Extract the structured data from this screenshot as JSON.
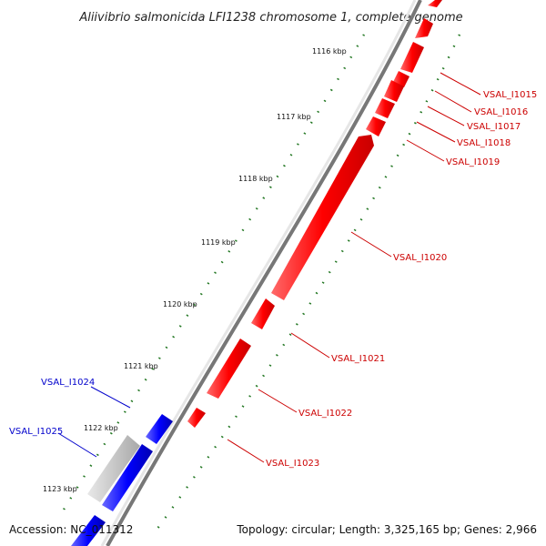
{
  "title": "Aliivibrio salmonicida LFI1238 chromosome 1, complete genome",
  "footer": {
    "accession": "Accession: NC_011312",
    "topology": "Topology: circular; Length: 3,325,165 bp; Genes: 2,966"
  },
  "scale_labels": [
    "1116 kbp",
    "1117 kbp",
    "1118 kbp",
    "1119 kbp",
    "1120 kbp",
    "1121 kbp",
    "1122 kbp",
    "1123 kbp"
  ],
  "genes_forward": [
    "VSAL_I1015",
    "VSAL_I1016",
    "VSAL_I1017",
    "VSAL_I1018",
    "VSAL_I1019",
    "VSAL_I1020",
    "VSAL_I1021",
    "VSAL_I1022",
    "VSAL_I1023"
  ],
  "genes_reverse": [
    "VSAL_I1024",
    "VSAL_I1025"
  ],
  "colors": {
    "forward": "#ff0000",
    "reverse": "#0000ff",
    "pseudo": "#c8c8c8",
    "backbone": "#777777",
    "gc_ticks": "#227722",
    "forward_label": "#cc0000",
    "reverse_label": "#0000cc"
  }
}
